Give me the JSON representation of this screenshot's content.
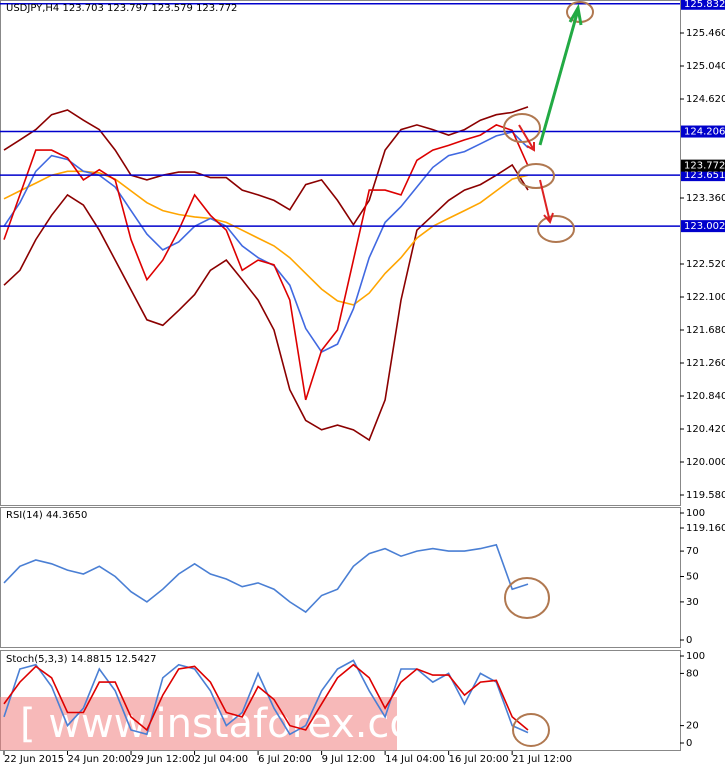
{
  "chart_data": [
    {
      "type": "line",
      "title": "USDJPY,H4  123.703 123.797 123.579 123.772",
      "x": [
        0,
        4,
        8,
        12,
        16,
        20,
        24,
        28,
        32,
        36,
        40,
        44,
        48,
        52,
        56,
        60,
        64,
        68,
        72,
        76,
        80,
        84,
        88,
        92,
        96,
        100,
        104,
        108,
        112,
        116,
        120,
        124,
        128,
        132
      ],
      "xlim": [
        0,
        170
      ],
      "ylim": [
        119.16,
        125.88
      ],
      "yticks": [
        {
          "value": 125.46,
          "label": "125.460"
        },
        {
          "value": 125.04,
          "label": "125.040"
        },
        {
          "value": 124.62,
          "label": "124.620"
        },
        {
          "value": 123.36,
          "label": "123.360"
        },
        {
          "value": 122.52,
          "label": "122.520"
        },
        {
          "value": 122.1,
          "label": "122.100"
        },
        {
          "value": 121.68,
          "label": "121.680"
        },
        {
          "value": 121.26,
          "label": "121.260"
        },
        {
          "value": 120.84,
          "label": "120.840"
        },
        {
          "value": 120.42,
          "label": "120.420"
        },
        {
          "value": 120.0,
          "label": "120.000"
        },
        {
          "value": 119.58,
          "label": "119.580"
        },
        {
          "value": 119.16,
          "label": "119.160"
        }
      ],
      "levels": [
        {
          "value": 125.832,
          "color": "#0000cc",
          "line": true
        },
        {
          "value": 124.206,
          "color": "#0000cc",
          "line": true
        },
        {
          "value": 123.651,
          "color": "#0000cc",
          "line": true
        },
        {
          "value": 123.002,
          "color": "#0000cc",
          "line": true
        },
        {
          "value": 123.772,
          "color": "#000000",
          "line": false
        }
      ],
      "series": [
        {
          "color": "#8b0000",
          "values": [
            123.97,
            124.1,
            124.23,
            124.42,
            124.48,
            124.35,
            124.23,
            123.97,
            123.65,
            123.59,
            123.65,
            123.69,
            123.69,
            123.62,
            123.62,
            123.46,
            123.4,
            123.33,
            123.21,
            123.53,
            123.59,
            123.33,
            123.02,
            123.33,
            123.97,
            124.23,
            124.29,
            124.23,
            124.16,
            124.23,
            124.35,
            124.42,
            124.45,
            124.52
          ]
        },
        {
          "color": "#8b0000",
          "values": [
            122.25,
            122.44,
            122.83,
            123.14,
            123.4,
            123.27,
            122.95,
            122.57,
            122.19,
            121.81,
            121.74,
            121.93,
            122.13,
            122.44,
            122.57,
            122.32,
            122.06,
            121.68,
            120.92,
            120.53,
            120.41,
            120.47,
            120.41,
            120.28,
            120.79,
            122.06,
            122.95,
            123.14,
            123.33,
            123.46,
            123.53,
            123.65,
            123.78,
            123.46
          ]
        },
        {
          "color": "#ffa500",
          "values": [
            123.35,
            123.45,
            123.55,
            123.65,
            123.7,
            123.7,
            123.68,
            123.6,
            123.45,
            123.3,
            123.2,
            123.15,
            123.12,
            123.1,
            123.05,
            122.95,
            122.85,
            122.75,
            122.6,
            122.4,
            122.2,
            122.05,
            122.0,
            122.15,
            122.4,
            122.6,
            122.85,
            123.0,
            123.1,
            123.2,
            123.3,
            123.45,
            123.6,
            123.65
          ]
        },
        {
          "color": "#4169e1",
          "values": [
            123.0,
            123.3,
            123.7,
            123.9,
            123.85,
            123.7,
            123.65,
            123.5,
            123.2,
            122.9,
            122.7,
            122.8,
            123.0,
            123.1,
            123.0,
            122.75,
            122.6,
            122.5,
            122.25,
            121.7,
            121.4,
            121.5,
            121.95,
            122.6,
            123.05,
            123.25,
            123.5,
            123.75,
            123.9,
            123.95,
            124.05,
            124.15,
            124.2,
            124.0
          ]
        },
        {
          "color": "#dd0000",
          "values": [
            122.83,
            123.4,
            123.97,
            123.97,
            123.87,
            123.59,
            123.72,
            123.59,
            122.83,
            122.32,
            122.57,
            122.95,
            123.4,
            123.14,
            122.95,
            122.44,
            122.57,
            122.51,
            122.06,
            120.79,
            121.42,
            121.68,
            122.57,
            123.46,
            123.46,
            123.4,
            123.84,
            123.97,
            124.03,
            124.1,
            124.16,
            124.29,
            124.22,
            123.77
          ]
        }
      ]
    },
    {
      "type": "line",
      "title": "RSI(14) 44.3650",
      "x": [
        0,
        4,
        8,
        12,
        16,
        20,
        24,
        28,
        32,
        36,
        40,
        44,
        48,
        52,
        56,
        60,
        64,
        68,
        72,
        76,
        80,
        84,
        88,
        92,
        96,
        100,
        104,
        108,
        112,
        116,
        120,
        124,
        128,
        132
      ],
      "xlim": [
        0,
        170
      ],
      "ylim": [
        0,
        100
      ],
      "yticks": [
        100,
        70,
        50,
        30,
        0
      ],
      "series": [
        {
          "color": "#4a7fd4",
          "values": [
            45,
            58,
            63,
            60,
            55,
            52,
            58,
            50,
            38,
            30,
            40,
            52,
            60,
            52,
            48,
            42,
            45,
            40,
            30,
            22,
            35,
            40,
            58,
            68,
            72,
            66,
            70,
            72,
            70,
            70,
            72,
            75,
            40,
            44
          ]
        }
      ]
    },
    {
      "type": "line",
      "title": "Stoch(5,3,3) 14.8815 12.5427",
      "x": [
        0,
        4,
        8,
        12,
        16,
        20,
        24,
        28,
        32,
        36,
        40,
        44,
        48,
        52,
        56,
        60,
        64,
        68,
        72,
        76,
        80,
        84,
        88,
        92,
        96,
        100,
        104,
        108,
        112,
        116,
        120,
        124,
        128,
        132
      ],
      "xlim": [
        0,
        170
      ],
      "ylim": [
        0,
        100
      ],
      "yticks": [
        100,
        80,
        20,
        0
      ],
      "xticks": [
        {
          "value": 0,
          "label": "22 Jun 2015"
        },
        {
          "value": 16,
          "label": "24 Jun 20:00"
        },
        {
          "value": 32,
          "label": "29 Jun 12:00"
        },
        {
          "value": 48,
          "label": "2 Jul 04:00"
        },
        {
          "value": 64,
          "label": "6 Jul 20:00"
        },
        {
          "value": 80,
          "label": "9 Jul 12:00"
        },
        {
          "value": 96,
          "label": "14 Jul 04:00"
        },
        {
          "value": 112,
          "label": "16 Jul 20:00"
        },
        {
          "value": 128,
          "label": "21 Jul 12:00"
        }
      ],
      "series": [
        {
          "color": "#4a7fd4",
          "values": [
            30,
            85,
            90,
            65,
            20,
            40,
            85,
            60,
            15,
            10,
            75,
            90,
            85,
            60,
            20,
            35,
            80,
            40,
            10,
            20,
            60,
            85,
            95,
            60,
            30,
            85,
            85,
            70,
            80,
            45,
            80,
            70,
            20,
            12
          ]
        },
        {
          "color": "#dd0000",
          "values": [
            45,
            70,
            88,
            75,
            35,
            35,
            70,
            70,
            30,
            15,
            55,
            85,
            88,
            70,
            35,
            30,
            65,
            50,
            20,
            15,
            45,
            75,
            90,
            75,
            40,
            70,
            85,
            78,
            78,
            55,
            70,
            72,
            30,
            15
          ]
        }
      ]
    }
  ],
  "watermark": "[  www.instaforex.com  ]"
}
